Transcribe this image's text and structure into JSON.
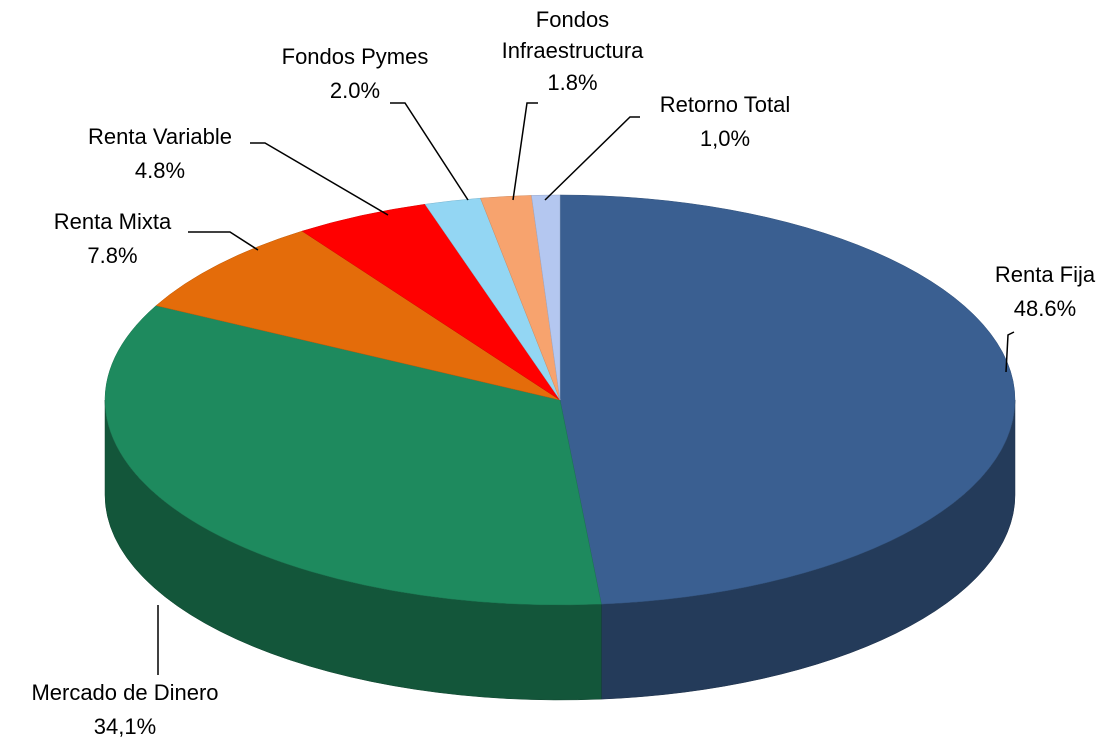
{
  "chart_data": {
    "type": "pie",
    "categories": [
      "Renta Fija",
      "Mercado de Dinero",
      "Renta Mixta",
      "Renta Variable",
      "Fondos Pymes",
      "Fondos Infraestructura",
      "Retorno Total"
    ],
    "values": [
      48.6,
      34.1,
      7.8,
      4.8,
      2.0,
      1.8,
      1.0
    ],
    "value_labels": [
      "48.6%",
      "34,1%",
      "7.8%",
      "4.8%",
      "2.0%",
      "1.8%",
      "1,0%"
    ],
    "colors": [
      "#3a5f91",
      "#1e8a5e",
      "#e46c0a",
      "#ff0000",
      "#93d6f3",
      "#f7a36e",
      "#b4c7f0"
    ]
  }
}
